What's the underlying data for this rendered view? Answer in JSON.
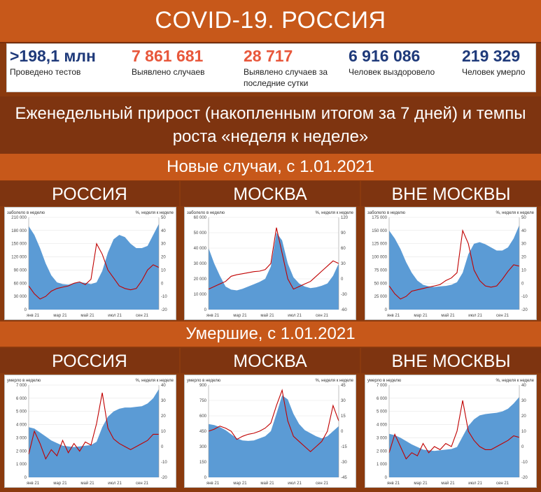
{
  "title": "COVID-19. РОССИЯ",
  "stats": [
    {
      "value": ">198,1 млн",
      "label": "Проведено тестов",
      "color": "#1f3a7a"
    },
    {
      "value": "7 861 681",
      "label": "Выявлено случаев",
      "color": "#e8573b"
    },
    {
      "value": "28 717",
      "label": "Выявлено случаев за последние сутки",
      "color": "#e8573b"
    },
    {
      "value": "6 916 086",
      "label": "Человек выздоровело",
      "color": "#1f3a7a"
    },
    {
      "value": "219 329",
      "label": "Человек умерло",
      "color": "#1f3a7a"
    }
  ],
  "subtitle": "Еженедельный прирост (накопленным итогом за 7 дней) и темпы роста «неделя к неделе»",
  "section_cases": "Новые случаи, с 1.01.2021",
  "section_deaths": "Умершие, с 1.01.2021",
  "region_headers": [
    "РОССИЯ",
    "МОСКВА",
    "ВНЕ МОСКВЫ"
  ],
  "colors": {
    "area": "#5b9bd5",
    "line": "#c00000"
  },
  "chart_data": [
    {
      "type": "area",
      "region": "РОССИЯ",
      "section": "cases",
      "ylabel_left": "заболело в неделю",
      "ylabel_right": "%, неделя к неделе",
      "x_ticks": [
        "янв 21",
        "мар 21",
        "май 21",
        "июл 21",
        "сен 21"
      ],
      "y_left_ticks": [
        "210 000",
        "180 000",
        "150 000",
        "120 000",
        "90 000",
        "60 000",
        "30 000",
        "0"
      ],
      "y_right_ticks": [
        "50",
        "40",
        "30",
        "20",
        "10",
        "0",
        "-10",
        "-20"
      ],
      "ylim_left": [
        0,
        210000
      ],
      "ylim_right": [
        -20,
        50
      ],
      "series_area": [
        190000,
        170000,
        140000,
        105000,
        78000,
        62000,
        58000,
        57000,
        60000,
        62000,
        61000,
        58000,
        62000,
        88000,
        130000,
        160000,
        170000,
        165000,
        150000,
        140000,
        140000,
        145000,
        170000,
        195000
      ],
      "series_line": [
        -2,
        -8,
        -12,
        -10,
        -6,
        -4,
        -3,
        -2,
        0,
        1,
        -1,
        3,
        30,
        22,
        10,
        4,
        -2,
        -4,
        -5,
        -4,
        2,
        10,
        14,
        12
      ]
    },
    {
      "type": "area",
      "region": "МОСКВА",
      "section": "cases",
      "ylabel_left": "заболело в неделю",
      "ylabel_right": "%, неделя к неделе",
      "x_ticks": [
        "янв 21",
        "мар 21",
        "май 21",
        "июл 21",
        "сен 21"
      ],
      "y_left_ticks": [
        "60 000",
        "50 000",
        "40 000",
        "30 000",
        "20 000",
        "10 000",
        "0"
      ],
      "y_right_ticks": [
        "120",
        "90",
        "60",
        "30",
        "0",
        "-30",
        "-60"
      ],
      "ylim_left": [
        0,
        60000
      ],
      "ylim_right": [
        -60,
        120
      ],
      "series_area": [
        40000,
        30000,
        22000,
        15000,
        13000,
        12500,
        13500,
        15000,
        16500,
        18000,
        20000,
        28000,
        50000,
        45000,
        30000,
        21000,
        17000,
        15000,
        14000,
        14500,
        15500,
        17000,
        22000,
        30000
      ],
      "series_line": [
        -20,
        -15,
        -10,
        -5,
        5,
        8,
        10,
        12,
        14,
        15,
        18,
        30,
        100,
        50,
        0,
        -20,
        -15,
        -10,
        -5,
        5,
        15,
        25,
        35,
        30
      ]
    },
    {
      "type": "area",
      "region": "ВНЕ МОСКВЫ",
      "section": "cases",
      "ylabel_left": "заболело в неделю",
      "ylabel_right": "%, неделя к неделе",
      "x_ticks": [
        "янв 21",
        "мар 21",
        "май 21",
        "июл 21",
        "сен 21"
      ],
      "y_left_ticks": [
        "175 000",
        "150 000",
        "125 000",
        "100 000",
        "75 000",
        "50 000",
        "25 000",
        "0"
      ],
      "y_right_ticks": [
        "50",
        "40",
        "30",
        "20",
        "10",
        "0",
        "-10",
        "-20"
      ],
      "ylim_left": [
        0,
        175000
      ],
      "ylim_right": [
        -20,
        50
      ],
      "series_area": [
        150000,
        135000,
        115000,
        90000,
        70000,
        55000,
        47000,
        44000,
        43000,
        44000,
        45000,
        47000,
        52000,
        70000,
        105000,
        125000,
        128000,
        124000,
        118000,
        112000,
        112000,
        118000,
        135000,
        160000
      ],
      "series_line": [
        -2,
        -8,
        -12,
        -10,
        -6,
        -5,
        -4,
        -3,
        -2,
        -1,
        2,
        4,
        8,
        40,
        30,
        10,
        2,
        -2,
        -3,
        -2,
        3,
        9,
        14,
        13
      ]
    },
    {
      "type": "area",
      "region": "РОССИЯ",
      "section": "deaths",
      "ylabel_left": "умерло в неделю",
      "ylabel_right": "%, неделя к неделе",
      "x_ticks": [
        "янв 21",
        "мар 21",
        "май 21",
        "июл 21",
        "сен 21"
      ],
      "y_left_ticks": [
        "7 000",
        "6 000",
        "5 000",
        "4 000",
        "3 000",
        "2 000",
        "1 000",
        "0"
      ],
      "y_right_ticks": [
        "40",
        "30",
        "20",
        "10",
        "0",
        "-10",
        "-20"
      ],
      "ylim_left": [
        0,
        7000
      ],
      "ylim_right": [
        -20,
        40
      ],
      "series_area": [
        3800,
        3700,
        3400,
        3100,
        2800,
        2600,
        2400,
        2350,
        2300,
        2350,
        2400,
        2450,
        2700,
        3800,
        4600,
        5000,
        5200,
        5300,
        5300,
        5350,
        5400,
        5600,
        6000,
        6700
      ],
      "series_line": [
        -5,
        10,
        2,
        -8,
        -2,
        -6,
        4,
        -4,
        2,
        -3,
        3,
        1,
        15,
        35,
        12,
        5,
        2,
        0,
        -2,
        0,
        2,
        4,
        8,
        8
      ]
    },
    {
      "type": "area",
      "region": "МОСКВА",
      "section": "deaths",
      "ylabel_left": "умерло в неделю",
      "ylabel_right": "%, неделя к неделе",
      "x_ticks": [
        "янв 21",
        "мар 21",
        "май 21",
        "июл 21",
        "сен 21"
      ],
      "y_left_ticks": [
        "900",
        "750",
        "600",
        "450",
        "300",
        "150",
        "0"
      ],
      "y_right_ticks": [
        "45",
        "30",
        "15",
        "0",
        "-15",
        "-30",
        "-45"
      ],
      "ylim_left": [
        0,
        900
      ],
      "ylim_right": [
        -45,
        45
      ],
      "series_area": [
        520,
        510,
        490,
        460,
        420,
        380,
        360,
        355,
        360,
        380,
        400,
        450,
        620,
        800,
        760,
        620,
        520,
        460,
        430,
        400,
        380,
        400,
        450,
        500
      ],
      "series_line": [
        0,
        2,
        5,
        3,
        0,
        -8,
        -5,
        -3,
        -2,
        0,
        3,
        8,
        25,
        40,
        10,
        -5,
        -10,
        -15,
        -20,
        -15,
        -10,
        0,
        25,
        10
      ]
    },
    {
      "type": "area",
      "region": "ВНЕ МОСКВЫ",
      "section": "deaths",
      "ylabel_left": "умерло в неделю",
      "ylabel_right": "%, неделя к неделе",
      "x_ticks": [
        "янв 21",
        "мар 21",
        "май 21",
        "июл 21",
        "сен 21"
      ],
      "y_left_ticks": [
        "7 000",
        "6 000",
        "5 000",
        "4 000",
        "3 000",
        "2 000",
        "1 000",
        "0"
      ],
      "y_right_ticks": [
        "40",
        "30",
        "20",
        "10",
        "0",
        "-10",
        "-20"
      ],
      "ylim_left": [
        0,
        7000
      ],
      "ylim_right": [
        -20,
        40
      ],
      "series_area": [
        3300,
        3200,
        3000,
        2750,
        2500,
        2300,
        2100,
        2050,
        2000,
        2050,
        2100,
        2150,
        2300,
        3100,
        3900,
        4400,
        4700,
        4800,
        4850,
        4900,
        5000,
        5200,
        5600,
        6100
      ],
      "series_line": [
        -4,
        8,
        0,
        -8,
        -4,
        -6,
        2,
        -4,
        0,
        -2,
        2,
        0,
        10,
        30,
        10,
        4,
        0,
        -2,
        -2,
        0,
        2,
        4,
        7,
        6
      ]
    }
  ]
}
